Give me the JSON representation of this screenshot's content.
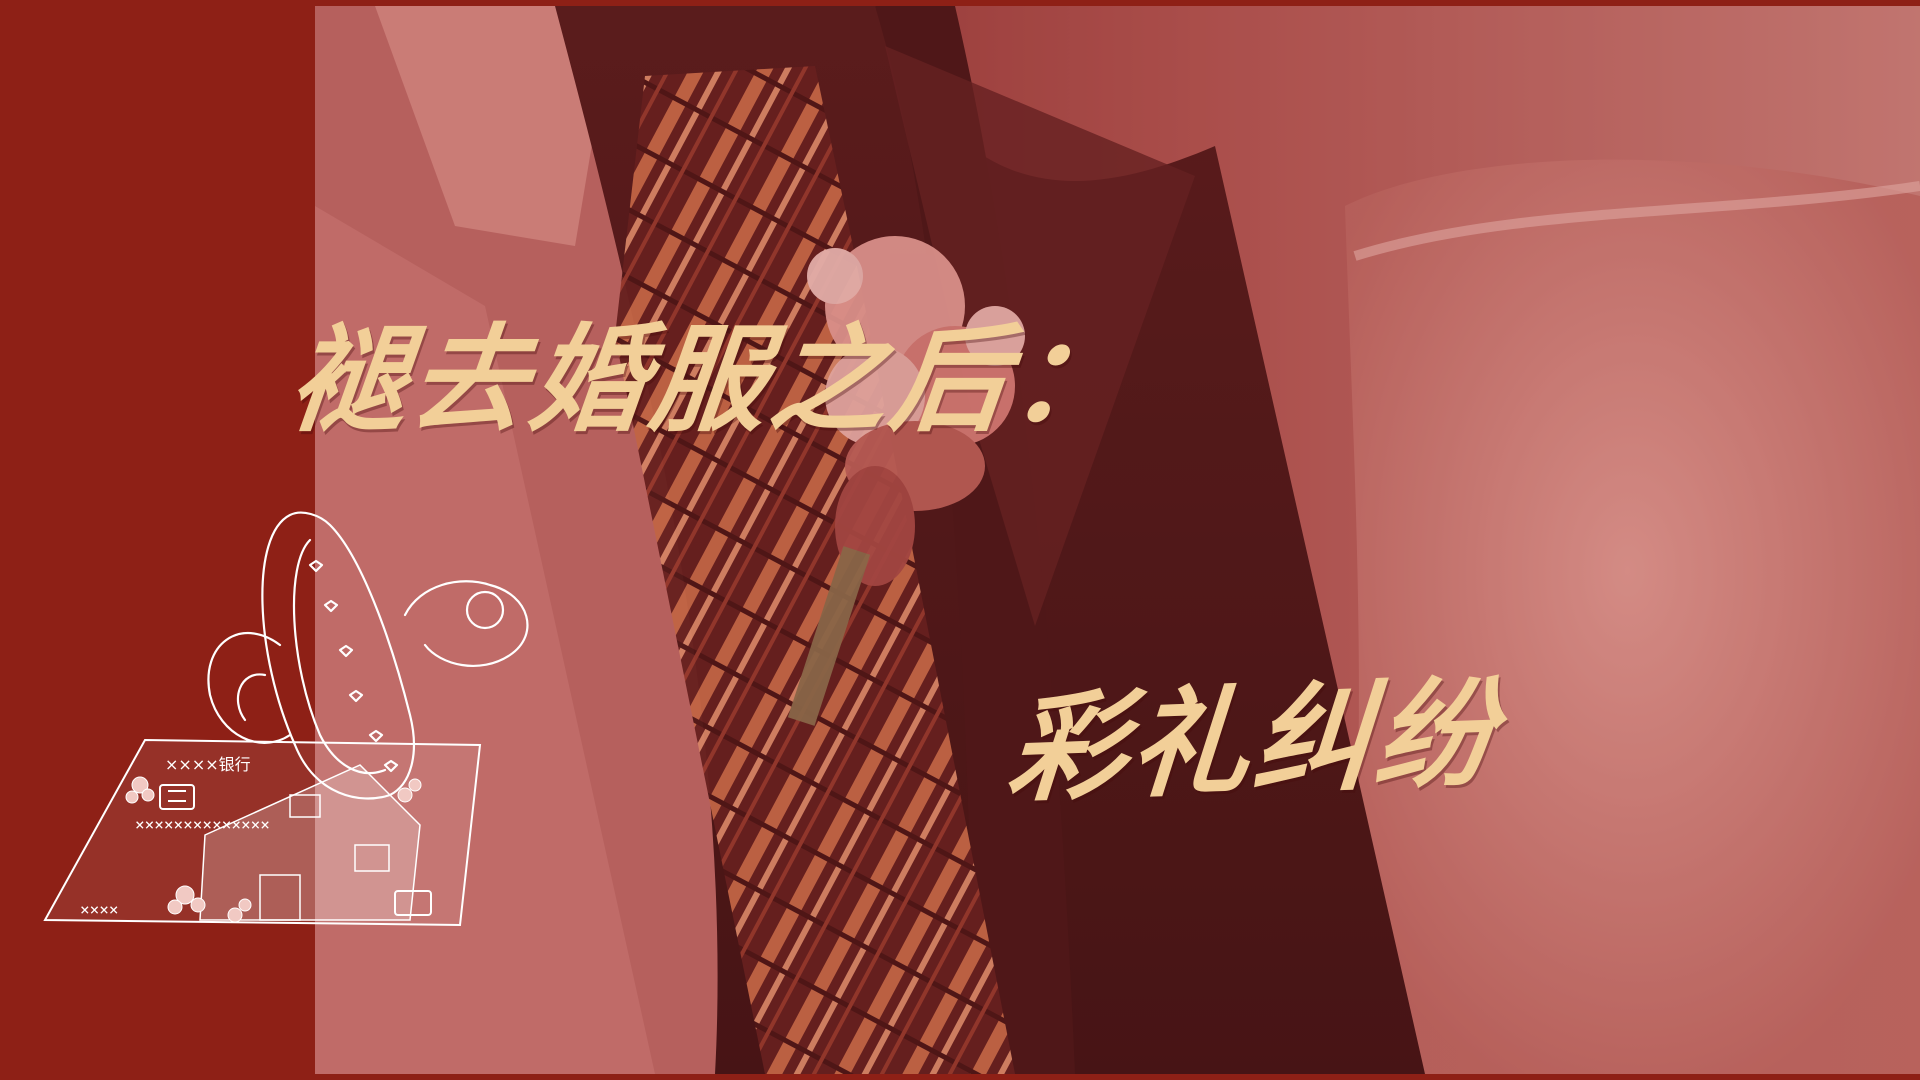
{
  "title": {
    "line1": "褪去婚服之后：",
    "line2": "彩礼纠纷"
  },
  "card": {
    "bank_label": "××××银行",
    "number_row": "××××××××××××××",
    "short_row": "××××"
  },
  "colors": {
    "background": "#8e2016",
    "title_text": "#f2cf98",
    "photo_tint": "#b05a58",
    "sketch_line": "#ffffff"
  },
  "icons": [
    "pacifier-icon",
    "bank-card-icon",
    "house-icon",
    "flower-icon",
    "chip-icon"
  ]
}
